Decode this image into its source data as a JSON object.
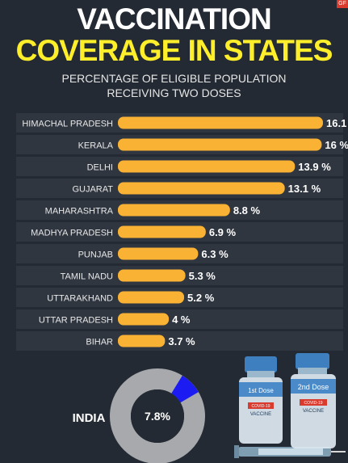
{
  "header": {
    "title_line1": "VACCINATION",
    "title_line2": "COVERAGE IN STATES",
    "subtitle_line1": "PERCENTAGE OF ELIGIBLE POPULATION",
    "subtitle_line2": "RECEIVING TWO DOSES",
    "corner_tag": "GF"
  },
  "chart_data": {
    "type": "bar",
    "orientation": "horizontal",
    "title": "VACCINATION COVERAGE IN STATES",
    "subtitle": "PERCENTAGE OF ELIGIBLE POPULATION RECEIVING TWO DOSES",
    "categories": [
      "HIMACHAL PRADESH",
      "KERALA",
      "DELHI",
      "GUJARAT",
      "MAHARASHTRA",
      "MADHYA PRADESH",
      "PUNJAB",
      "TAMIL NADU",
      "UTTARAKHAND",
      "UTTAR PRADESH",
      "BIHAR"
    ],
    "values": [
      16.1,
      16,
      13.9,
      13.1,
      8.8,
      6.9,
      6.3,
      5.3,
      5.2,
      4,
      3.7
    ],
    "value_labels": [
      "16.1",
      "16 %",
      "13.9 %",
      "13.1 %",
      "8.8 %",
      "6.9 %",
      "6.3 %",
      "5.3 %",
      "5.2 %",
      "4 %",
      "3.7 %"
    ],
    "xlim": [
      0,
      16.1
    ],
    "bar_color": "#f9b233",
    "grid": false
  },
  "india": {
    "label": "INDIA",
    "value": 7.8,
    "value_label": "7.8%",
    "ring_color": "#a7a9ac",
    "highlight_color": "#1b1bf2"
  },
  "illustration": {
    "vial1_cap": "1st Dose",
    "vial1_tag": "COVID-19",
    "vial1_text": "VACCINE",
    "vial2_cap": "2nd Dose",
    "vial2_tag": "COVID-19",
    "vial2_text": "VACCINE"
  },
  "colors": {
    "background": "#232a33",
    "title_white": "#ffffff",
    "title_yellow": "#ffee2a",
    "row_band": "#2f3640"
  }
}
